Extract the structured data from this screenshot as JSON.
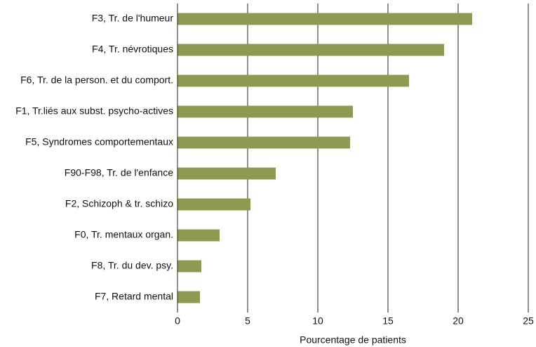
{
  "chart_data": {
    "type": "barh",
    "categories": [
      "F3, Tr. de l'humeur",
      "F4, Tr. névrotiques",
      "F6, Tr. de la person. et du comport.",
      "F1, Tr.liés aux subst. psycho-actives",
      "F5, Syndromes comportementaux",
      "F90-F98, Tr. de l'enfance",
      "F2, Schizoph & tr. schizo",
      "F0, Tr. mentaux organ.",
      "F8, Tr. du dev. psy.",
      "F7, Retard mental"
    ],
    "values": [
      21.0,
      19.0,
      16.5,
      12.5,
      12.3,
      7.0,
      5.2,
      3.0,
      1.7,
      1.6
    ],
    "color": "#8d9b50",
    "x_label": "Pourcentage de patients",
    "xlim": [
      0,
      25
    ],
    "xticks": [
      0,
      5,
      10,
      15,
      20,
      25
    ],
    "grid": true
  }
}
